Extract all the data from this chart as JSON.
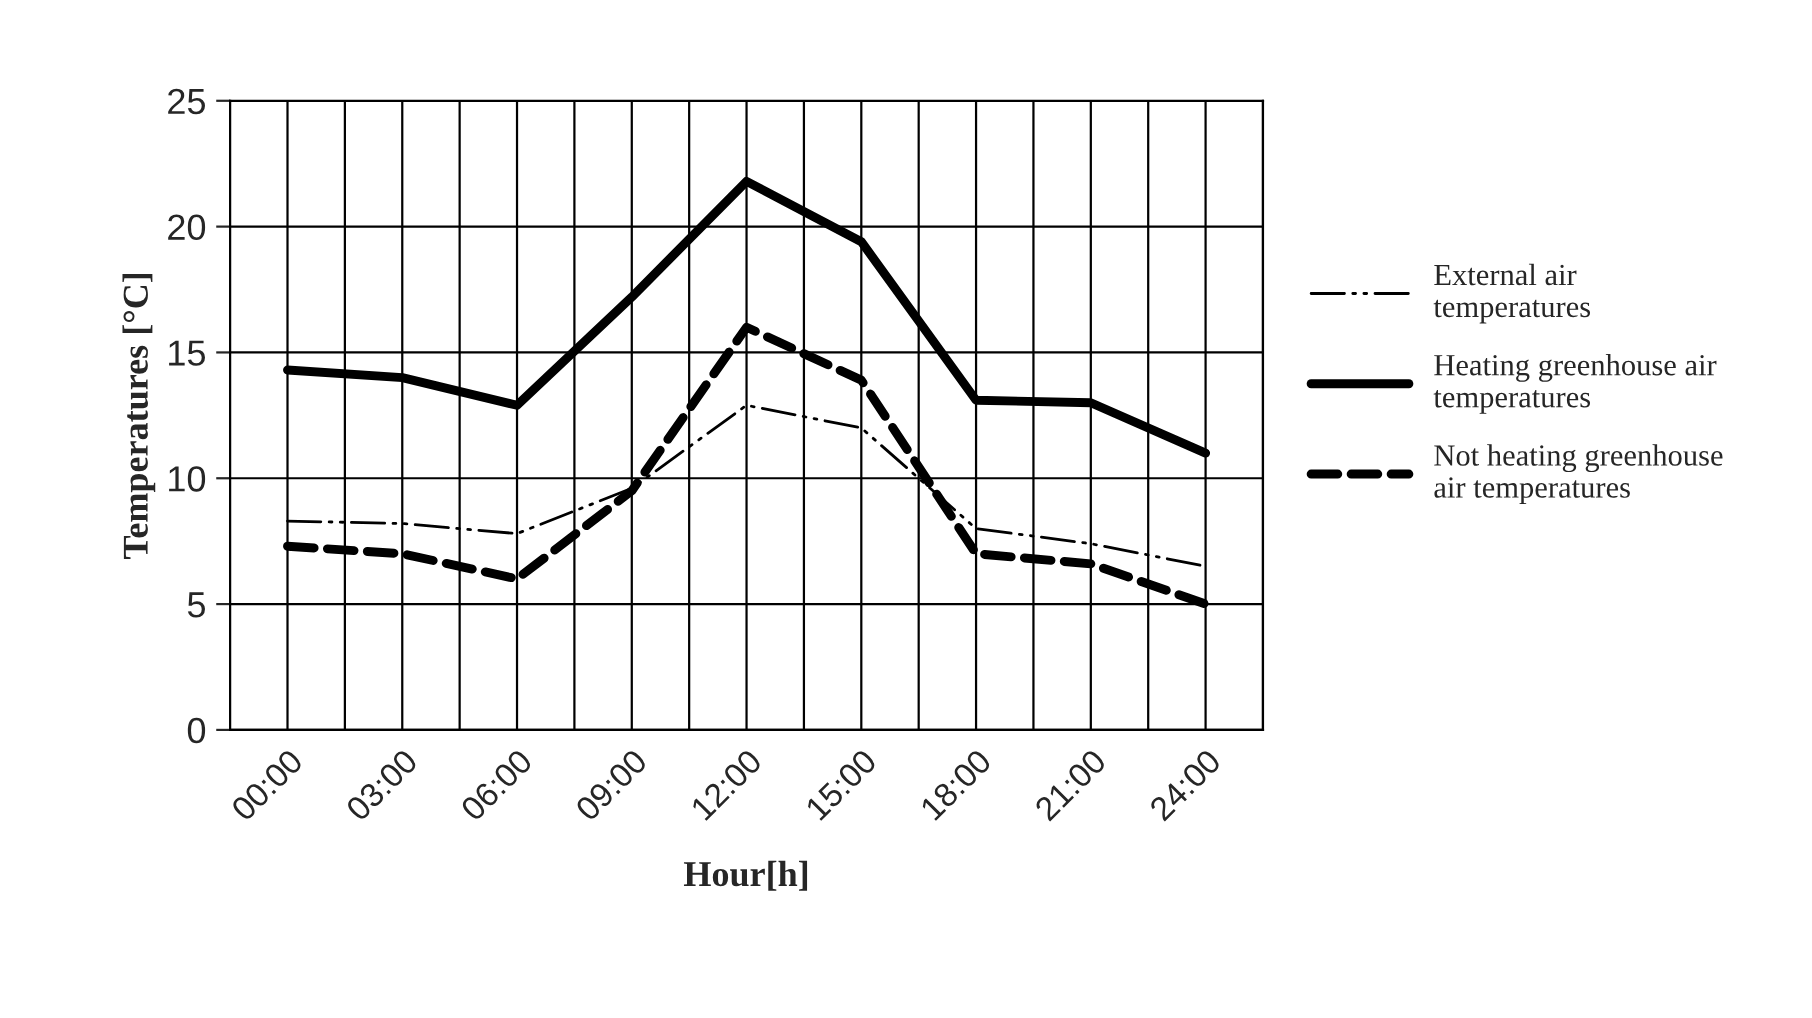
{
  "chart_data": {
    "type": "line",
    "xlabel": "Hour[h]",
    "ylabel": "Temperatures [°C]",
    "categories": [
      "00:00",
      "03:00",
      "06:00",
      "09:00",
      "12:00",
      "15:00",
      "18:00",
      "21:00",
      "24:00"
    ],
    "series": [
      {
        "name": "External air temperatures",
        "color": "#000000",
        "line_style": "dashdot",
        "values": [
          8.3,
          8.2,
          7.8,
          9.6,
          12.9,
          12.0,
          8.0,
          7.4,
          6.5
        ]
      },
      {
        "name": "Heating greenhouse air temperatures",
        "color": "#000000",
        "line_style": "solid",
        "values": [
          14.3,
          14.0,
          12.9,
          17.2,
          21.8,
          19.4,
          13.1,
          13.0,
          11.0
        ]
      },
      {
        "name": "Not heating greenhouse air temperatures",
        "color": "#000000",
        "line_style": "dashed",
        "values": [
          7.3,
          7.0,
          6.0,
          9.5,
          16.0,
          13.9,
          7.0,
          6.6,
          5.0
        ]
      }
    ],
    "ylim": [
      0,
      25
    ],
    "yticks": [
      0,
      5,
      10,
      15,
      20,
      25
    ],
    "grid": true,
    "legend": "right"
  }
}
